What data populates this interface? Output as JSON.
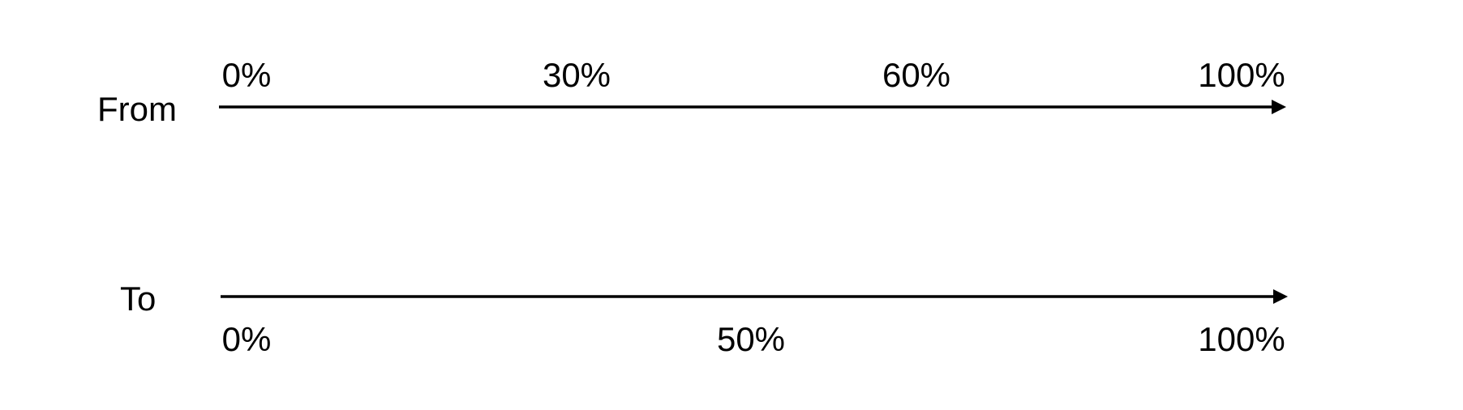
{
  "colors": {
    "background": "#ffffff",
    "foreground": "#000000"
  },
  "diagram": {
    "from": {
      "label": "From",
      "ticks": [
        {
          "text": "0%",
          "value": 0
        },
        {
          "text": "30%",
          "value": 30
        },
        {
          "text": "60%",
          "value": 60
        },
        {
          "text": "100%",
          "value": 100
        }
      ]
    },
    "to": {
      "label": "To",
      "ticks": [
        {
          "text": "0%",
          "value": 0
        },
        {
          "text": "50%",
          "value": 50
        },
        {
          "text": "100%",
          "value": 100
        }
      ]
    }
  }
}
